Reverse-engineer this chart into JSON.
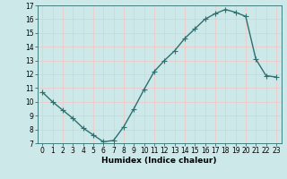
{
  "title": "",
  "xlabel": "Humidex (Indice chaleur)",
  "ylabel": "",
  "x": [
    0,
    1,
    2,
    3,
    4,
    5,
    6,
    7,
    8,
    9,
    10,
    11,
    12,
    13,
    14,
    15,
    16,
    17,
    18,
    19,
    20,
    21,
    22,
    23
  ],
  "y": [
    10.7,
    10.0,
    9.4,
    8.8,
    8.1,
    7.6,
    7.1,
    7.2,
    8.2,
    9.5,
    10.9,
    12.2,
    13.0,
    13.7,
    14.6,
    15.3,
    16.0,
    16.4,
    16.7,
    16.5,
    16.2,
    13.1,
    11.9,
    11.8
  ],
  "line_color": "#2d7070",
  "marker": "+",
  "markersize": 4,
  "linewidth": 1.0,
  "background_color": "#cce8e8",
  "grid_color": "#f0c8c8",
  "ylim": [
    7,
    17
  ],
  "xlim": [
    -0.5,
    23.5
  ],
  "yticks": [
    7,
    8,
    9,
    10,
    11,
    12,
    13,
    14,
    15,
    16,
    17
  ],
  "xticks": [
    0,
    1,
    2,
    3,
    4,
    5,
    6,
    7,
    8,
    9,
    10,
    11,
    12,
    13,
    14,
    15,
    16,
    17,
    18,
    19,
    20,
    21,
    22,
    23
  ],
  "tick_fontsize": 5.5,
  "xlabel_fontsize": 6.5,
  "spine_color": "#2d7070"
}
